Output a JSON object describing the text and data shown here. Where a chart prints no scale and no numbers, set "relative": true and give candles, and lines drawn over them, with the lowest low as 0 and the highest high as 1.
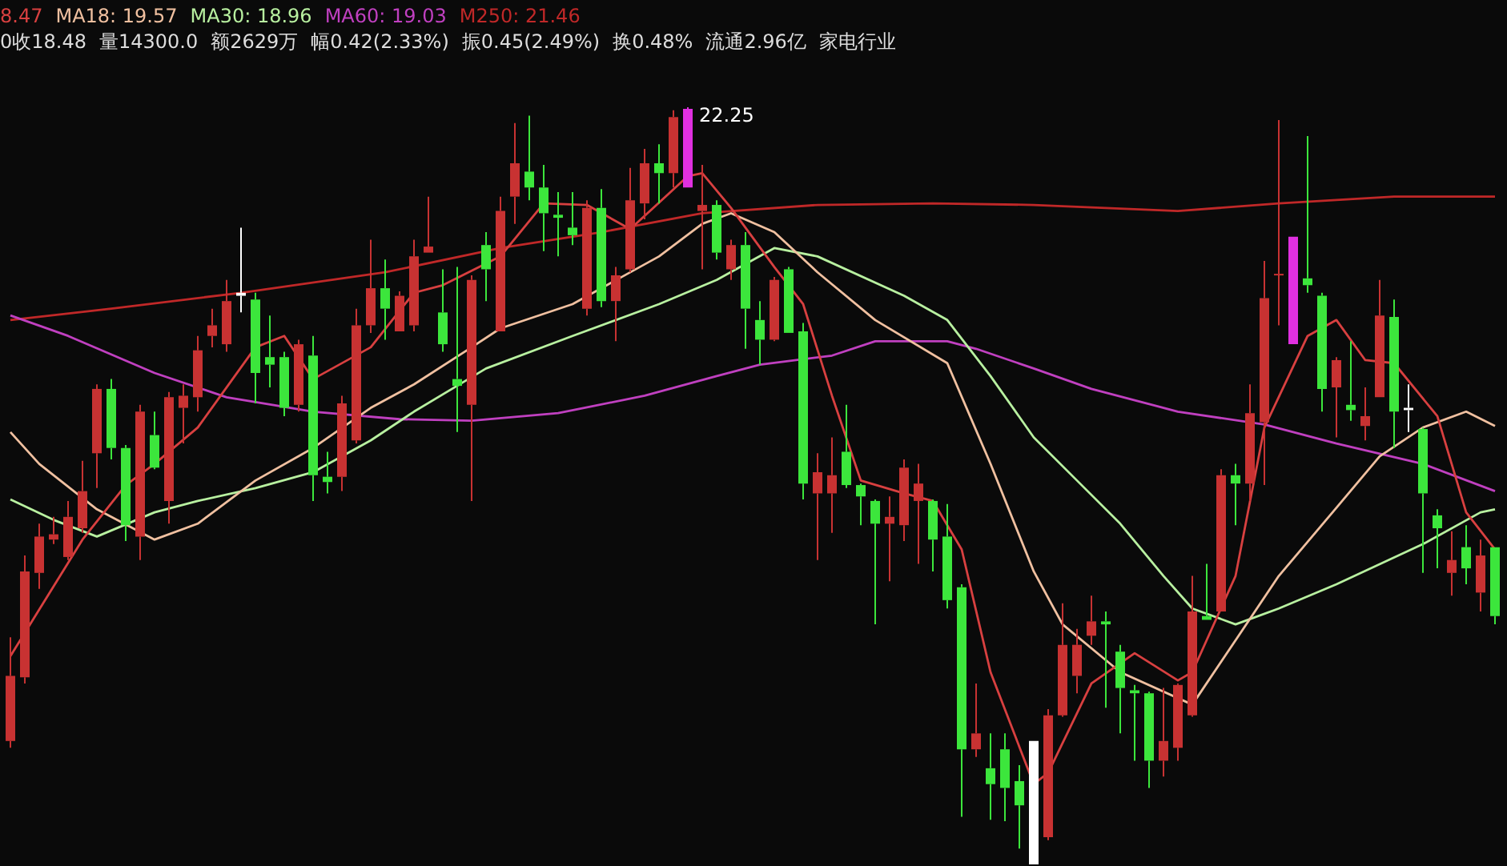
{
  "chart_data": {
    "type": "candlestick",
    "relative": true,
    "categories": [
      null,
      null,
      null,
      null,
      null,
      null,
      null,
      null,
      null,
      null,
      null,
      null,
      null,
      null,
      null,
      null,
      null,
      null,
      null,
      null,
      null,
      null,
      null,
      null,
      null,
      null,
      null,
      null,
      null,
      null,
      null,
      null,
      null,
      null,
      null,
      null,
      null,
      null,
      null,
      null,
      null,
      null,
      null,
      null,
      null,
      null,
      null,
      null,
      null,
      null,
      null,
      null,
      null,
      null,
      null,
      null,
      null,
      null,
      null,
      null,
      null,
      null,
      null,
      null,
      null,
      null,
      null,
      null,
      null,
      null,
      null,
      null,
      null,
      null,
      null,
      null,
      null,
      null,
      null,
      null,
      null,
      null,
      null,
      null,
      null,
      null,
      null,
      null,
      null,
      null,
      null,
      null,
      null,
      null,
      null,
      null,
      null,
      null,
      null,
      null,
      null,
      null,
      null,
      null
    ],
    "ohlc": [
      [
        0.163,
        0.3,
        0.154,
        0.249
      ],
      [
        0.247,
        0.408,
        0.239,
        0.387
      ],
      [
        0.385,
        0.45,
        0.364,
        0.433
      ],
      [
        0.429,
        0.459,
        0.423,
        0.436
      ],
      [
        0.406,
        0.48,
        0.402,
        0.459
      ],
      [
        0.444,
        0.533,
        0.438,
        0.493
      ],
      [
        0.543,
        0.634,
        0.497,
        0.628
      ],
      [
        0.628,
        0.641,
        0.535,
        0.55
      ],
      [
        0.55,
        0.554,
        0.427,
        0.448
      ],
      [
        0.433,
        0.607,
        0.402,
        0.598
      ],
      [
        0.567,
        0.598,
        0.522,
        0.524
      ],
      [
        0.48,
        0.624,
        0.45,
        0.617
      ],
      [
        0.603,
        0.634,
        0.556,
        0.619
      ],
      [
        0.617,
        0.698,
        0.598,
        0.679
      ],
      [
        0.698,
        0.734,
        0.683,
        0.712
      ],
      [
        0.687,
        0.772,
        0.677,
        0.744
      ],
      [
        0.751,
        0.841,
        0.729,
        0.755
      ],
      [
        0.746,
        0.755,
        0.609,
        0.649
      ],
      [
        0.67,
        0.725,
        0.63,
        0.66
      ],
      [
        0.67,
        0.677,
        0.592,
        0.603
      ],
      [
        0.607,
        0.693,
        0.598,
        0.687
      ],
      [
        0.672,
        0.698,
        0.48,
        0.514
      ],
      [
        0.512,
        0.545,
        0.49,
        0.505
      ],
      [
        0.512,
        0.619,
        0.493,
        0.609
      ],
      [
        0.56,
        0.734,
        0.556,
        0.712
      ],
      [
        0.712,
        0.825,
        0.702,
        0.761
      ],
      [
        0.761,
        0.799,
        0.693,
        0.734
      ],
      [
        0.704,
        0.757,
        0.704,
        0.751
      ],
      [
        0.712,
        0.825,
        0.704,
        0.803
      ],
      [
        0.808,
        0.882,
        0.808,
        0.816
      ],
      [
        0.729,
        0.786,
        0.677,
        0.687
      ],
      [
        0.641,
        0.789,
        0.571,
        0.632
      ],
      [
        0.607,
        0.778,
        0.48,
        0.772
      ],
      [
        0.818,
        0.835,
        0.744,
        0.786
      ],
      [
        0.704,
        0.882,
        0.704,
        0.863
      ],
      [
        0.882,
        0.979,
        0.846,
        0.926
      ],
      [
        0.915,
        0.989,
        0.877,
        0.894
      ],
      [
        0.894,
        0.924,
        0.81,
        0.86
      ],
      [
        0.858,
        0.888,
        0.803,
        0.854
      ],
      [
        0.841,
        0.888,
        0.818,
        0.831
      ],
      [
        0.734,
        0.877,
        0.725,
        0.867
      ],
      [
        0.867,
        0.892,
        0.736,
        0.744
      ],
      [
        0.744,
        0.789,
        0.691,
        0.778
      ],
      [
        0.786,
        0.92,
        0.782,
        0.877
      ],
      [
        0.873,
        0.945,
        0.852,
        0.926
      ],
      [
        0.926,
        0.951,
        0.873,
        0.913
      ],
      [
        0.913,
        0.996,
        0.894,
        0.987
      ],
      [
        0.998,
        1.0,
        0.894,
        0.894
      ],
      [
        0.863,
        0.924,
        0.786,
        0.871
      ],
      [
        0.871,
        0.877,
        0.799,
        0.808
      ],
      [
        0.786,
        0.825,
        0.772,
        0.818
      ],
      [
        0.818,
        0.835,
        0.681,
        0.734
      ],
      [
        0.719,
        0.744,
        0.66,
        0.693
      ],
      [
        0.693,
        0.776,
        0.691,
        0.772
      ],
      [
        0.786,
        0.789,
        0.702,
        0.702
      ],
      [
        0.704,
        0.715,
        0.482,
        0.503
      ],
      [
        0.49,
        0.543,
        0.402,
        0.518
      ],
      [
        0.49,
        0.564,
        0.438,
        0.514
      ],
      [
        0.545,
        0.607,
        0.497,
        0.501
      ],
      [
        0.501,
        0.503,
        0.448,
        0.486
      ],
      [
        0.48,
        0.482,
        0.317,
        0.45
      ],
      [
        0.45,
        0.486,
        0.374,
        0.459
      ],
      [
        0.448,
        0.535,
        0.427,
        0.524
      ],
      [
        0.48,
        0.529,
        0.397,
        0.503
      ],
      [
        0.48,
        0.482,
        0.387,
        0.429
      ],
      [
        0.433,
        0.476,
        0.338,
        0.349
      ],
      [
        0.366,
        0.37,
        0.063,
        0.152
      ],
      [
        0.152,
        0.239,
        0.142,
        0.173
      ],
      [
        0.127,
        0.173,
        0.059,
        0.106
      ],
      [
        0.152,
        0.173,
        0.057,
        0.101
      ],
      [
        0.11,
        0.131,
        0.021,
        0.078
      ],
      [
        0.163,
        0.163,
        0,
        0
      ],
      [
        0.036,
        0.205,
        0.032,
        0.197
      ],
      [
        0.197,
        0.345,
        0.195,
        0.29
      ],
      [
        0.249,
        0.311,
        0.226,
        0.29
      ],
      [
        0.302,
        0.355,
        0.29,
        0.321
      ],
      [
        0.321,
        0.334,
        0.207,
        0.317
      ],
      [
        0.281,
        0.29,
        0.173,
        0.233
      ],
      [
        0.23,
        0.237,
        0.137,
        0.226
      ],
      [
        0.226,
        0.228,
        0.101,
        0.137
      ],
      [
        0.137,
        0.233,
        0.116,
        0.163
      ],
      [
        0.154,
        0.239,
        0.137,
        0.237
      ],
      [
        0.197,
        0.381,
        0.195,
        0.334
      ],
      [
        0.328,
        0.397,
        0.323,
        0.323
      ],
      [
        0.334,
        0.522,
        0.334,
        0.514
      ],
      [
        0.514,
        0.529,
        0.448,
        0.503
      ],
      [
        0.503,
        0.634,
        0.48,
        0.596
      ],
      [
        0.584,
        0.797,
        0.501,
        0.748
      ],
      [
        0.778,
        0.983,
        0.712,
        0.78
      ],
      [
        0.829,
        0.829,
        0.687,
        0.687
      ],
      [
        0.774,
        0.962,
        0.755,
        0.765
      ],
      [
        0.751,
        0.755,
        0.598,
        0.628
      ],
      [
        0.63,
        0.67,
        0.564,
        0.666
      ],
      [
        0.607,
        0.691,
        0.586,
        0.6
      ],
      [
        0.579,
        0.63,
        0.56,
        0.592
      ],
      [
        0.617,
        0.772,
        0.617,
        0.725
      ],
      [
        0.723,
        0.746,
        0.55,
        0.598
      ],
      [
        0.6,
        0.634,
        0.571,
        0.603
      ],
      [
        0.575,
        0.577,
        0.385,
        0.49
      ],
      [
        0.461,
        0.469,
        0.391,
        0.444
      ],
      [
        0.385,
        0.44,
        0.355,
        0.402
      ],
      [
        0.419,
        0.448,
        0.37,
        0.391
      ],
      [
        0.359,
        0.429,
        0.334,
        0.408
      ],
      [
        0.419,
        0.419,
        0.317,
        0.328
      ]
    ],
    "colors": [
      "#c83232",
      "#c83232",
      "#c83232",
      "#c83232",
      "#c83232",
      "#c83232",
      "#c83232",
      "#3ce63c",
      "#3ce63c",
      "#c83232",
      "#3ce63c",
      "#c83232",
      "#c83232",
      "#c83232",
      "#c83232",
      "#c83232",
      "#ffffff",
      "#3ce63c",
      "#3ce63c",
      "#3ce63c",
      "#c83232",
      "#3ce63c",
      "#3ce63c",
      "#c83232",
      "#c83232",
      "#c83232",
      "#3ce63c",
      "#c83232",
      "#c83232",
      "#c83232",
      "#3ce63c",
      "#3ce63c",
      "#c83232",
      "#3ce63c",
      "#c83232",
      "#c83232",
      "#3ce63c",
      "#3ce63c",
      "#3ce63c",
      "#3ce63c",
      "#c83232",
      "#3ce63c",
      "#c83232",
      "#c83232",
      "#c83232",
      "#3ce63c",
      "#c83232",
      "#e030e0",
      "#c83232",
      "#3ce63c",
      "#c83232",
      "#3ce63c",
      "#3ce63c",
      "#c83232",
      "#3ce63c",
      "#3ce63c",
      "#c83232",
      "#c83232",
      "#3ce63c",
      "#3ce63c",
      "#3ce63c",
      "#c83232",
      "#c83232",
      "#c83232",
      "#3ce63c",
      "#3ce63c",
      "#3ce63c",
      "#c83232",
      "#3ce63c",
      "#3ce63c",
      "#3ce63c",
      "#ffffff",
      "#c83232",
      "#c83232",
      "#c83232",
      "#c83232",
      "#3ce63c",
      "#3ce63c",
      "#3ce63c",
      "#3ce63c",
      "#c83232",
      "#c83232",
      "#c83232",
      "#3ce63c",
      "#c83232",
      "#3ce63c",
      "#c83232",
      "#c83232",
      "#c83232",
      "#e030e0",
      "#3ce63c",
      "#3ce63c",
      "#c83232",
      "#3ce63c",
      "#c83232",
      "#c83232",
      "#3ce63c",
      "#ffffff",
      "#3ce63c",
      "#3ce63c",
      "#c83232",
      "#3ce63c",
      "#c83232",
      "#3ce63c"
    ],
    "series": [
      {
        "name": "8.47",
        "type": "line",
        "color": "#d84040",
        "values": [
          0.275,
          null,
          null,
          null,
          null,
          0.429,
          null,
          null,
          0.501,
          null,
          0.529,
          null,
          null,
          0.577,
          null,
          null,
          null,
          0.683,
          null,
          0.698,
          null,
          0.641,
          null,
          null,
          null,
          0.683,
          null,
          null,
          0.755,
          null,
          0.765,
          null,
          null,
          null,
          0.803,
          null,
          null,
          0.873,
          null,
          null,
          0.871,
          null,
          null,
          0.839,
          null,
          null,
          null,
          0.909,
          0.913,
          null,
          0.867,
          null,
          null,
          0.789,
          null,
          0.74,
          null,
          0.619,
          null,
          0.507,
          null,
          null,
          0.49,
          null,
          0.48,
          null,
          0.416,
          null,
          0.254,
          null,
          null,
          0.106,
          0.121,
          null,
          null,
          0.239,
          null,
          null,
          0.279,
          null,
          null,
          0.243,
          0.254,
          null,
          null,
          0.381,
          null,
          0.577,
          null,
          null,
          0.698,
          null,
          0.719,
          null,
          0.666,
          null,
          0.662,
          null,
          null,
          0.592,
          null,
          0.465,
          null,
          0.416
        ]
      },
      {
        "name": "MA18: 19.57",
        "type": "line",
        "color": "#f0c0a0",
        "values": [
          0.571,
          null,
          0.529,
          null,
          null,
          null,
          0.469,
          null,
          null,
          null,
          0.429,
          null,
          null,
          0.45,
          null,
          null,
          null,
          0.507,
          null,
          null,
          null,
          0.55,
          null,
          null,
          null,
          0.603,
          null,
          null,
          0.634,
          null,
          null,
          null,
          0.683,
          null,
          0.708,
          null,
          null,
          null,
          null,
          0.74,
          null,
          null,
          null,
          null,
          null,
          0.803,
          null,
          null,
          0.846,
          null,
          0.86,
          null,
          null,
          0.835,
          null,
          null,
          0.782,
          null,
          null,
          null,
          0.719,
          null,
          null,
          null,
          null,
          0.662,
          null,
          null,
          0.529,
          null,
          null,
          0.387,
          null,
          0.317,
          null,
          null,
          null,
          0.254,
          null,
          null,
          null,
          null,
          0.211,
          null,
          null,
          0.296,
          null,
          null,
          0.381,
          null,
          null,
          null,
          0.471,
          null,
          null,
          0.539,
          null,
          null,
          0.577,
          null,
          null,
          0.598,
          null,
          0.579
        ]
      },
      {
        "name": "MA30: 18.96",
        "type": "line",
        "color": "#b8f0a0",
        "values": [
          0.482,
          null,
          null,
          0.455,
          null,
          null,
          0.433,
          null,
          null,
          null,
          0.465,
          null,
          null,
          0.48,
          null,
          null,
          null,
          0.497,
          null,
          null,
          null,
          0.518,
          null,
          null,
          null,
          0.56,
          null,
          null,
          0.598,
          null,
          null,
          null,
          null,
          0.655,
          null,
          null,
          null,
          null,
          null,
          0.698,
          null,
          null,
          null,
          null,
          null,
          0.74,
          null,
          null,
          null,
          0.772,
          null,
          null,
          null,
          0.814,
          null,
          null,
          0.803,
          null,
          null,
          null,
          null,
          null,
          0.751,
          null,
          null,
          0.719,
          null,
          null,
          0.645,
          null,
          null,
          0.564,
          null,
          null,
          0.507,
          null,
          null,
          0.45,
          null,
          null,
          0.381,
          null,
          0.338,
          null,
          null,
          0.317,
          null,
          null,
          0.338,
          null,
          null,
          null,
          0.37,
          null,
          null,
          null,
          null,
          null,
          0.423,
          null,
          null,
          null,
          0.465,
          0.469
        ]
      },
      {
        "name": "MA60: 19.03",
        "type": "line",
        "color": "#c040c0",
        "values": [
          0.725,
          null,
          null,
          null,
          0.698,
          null,
          null,
          null,
          null,
          null,
          0.649,
          null,
          null,
          null,
          null,
          0.617,
          null,
          null,
          null,
          null,
          null,
          0.598,
          null,
          null,
          null,
          null,
          null,
          0.588,
          null,
          null,
          null,
          null,
          0.586,
          null,
          null,
          null,
          null,
          null,
          0.596,
          null,
          null,
          null,
          null,
          null,
          0.619,
          null,
          null,
          null,
          null,
          0.645,
          null,
          null,
          0.66,
          null,
          null,
          null,
          null,
          0.672,
          null,
          null,
          0.691,
          null,
          null,
          null,
          null,
          0.691,
          null,
          0.681,
          null,
          null,
          null,
          0.655,
          null,
          null,
          null,
          0.628,
          null,
          null,
          null,
          null,
          null,
          0.598,
          null,
          null,
          null,
          null,
          null,
          0.581,
          null,
          null,
          null,
          null,
          0.556,
          null,
          null,
          null,
          null,
          null,
          0.529,
          null,
          null,
          null,
          null,
          0.493
        ]
      },
      {
        "name": "M250: 21.46",
        "type": "line",
        "color": "#c02828",
        "values": [
          0.719,
          null,
          null,
          null,
          null,
          null,
          null,
          0.734,
          null,
          null,
          null,
          null,
          null,
          null,
          null,
          null,
          0.755,
          null,
          null,
          null,
          null,
          null,
          null,
          null,
          null,
          null,
          0.782,
          null,
          null,
          null,
          null,
          null,
          null,
          null,
          0.814,
          null,
          null,
          null,
          null,
          null,
          null,
          0.835,
          null,
          null,
          null,
          null,
          null,
          null,
          0.86,
          null,
          null,
          null,
          null,
          null,
          null,
          null,
          0.871,
          null,
          null,
          null,
          null,
          null,
          null,
          null,
          0.873,
          null,
          null,
          null,
          null,
          null,
          null,
          0.871,
          null,
          null,
          null,
          null,
          null,
          null,
          null,
          null,
          null,
          0.863,
          null,
          null,
          null,
          null,
          null,
          null,
          0.873,
          null,
          null,
          null,
          null,
          null,
          null,
          null,
          0.882,
          null,
          null,
          null,
          null,
          null,
          null,
          0.882
        ]
      }
    ],
    "annotations": [
      "0收18.48",
      "量14300.0",
      "额2629万",
      "幅0.42(2.33%)",
      "振0.45(2.49%)",
      "换0.48%",
      "流通2.96亿",
      "家电行业",
      "22.25"
    ]
  }
}
